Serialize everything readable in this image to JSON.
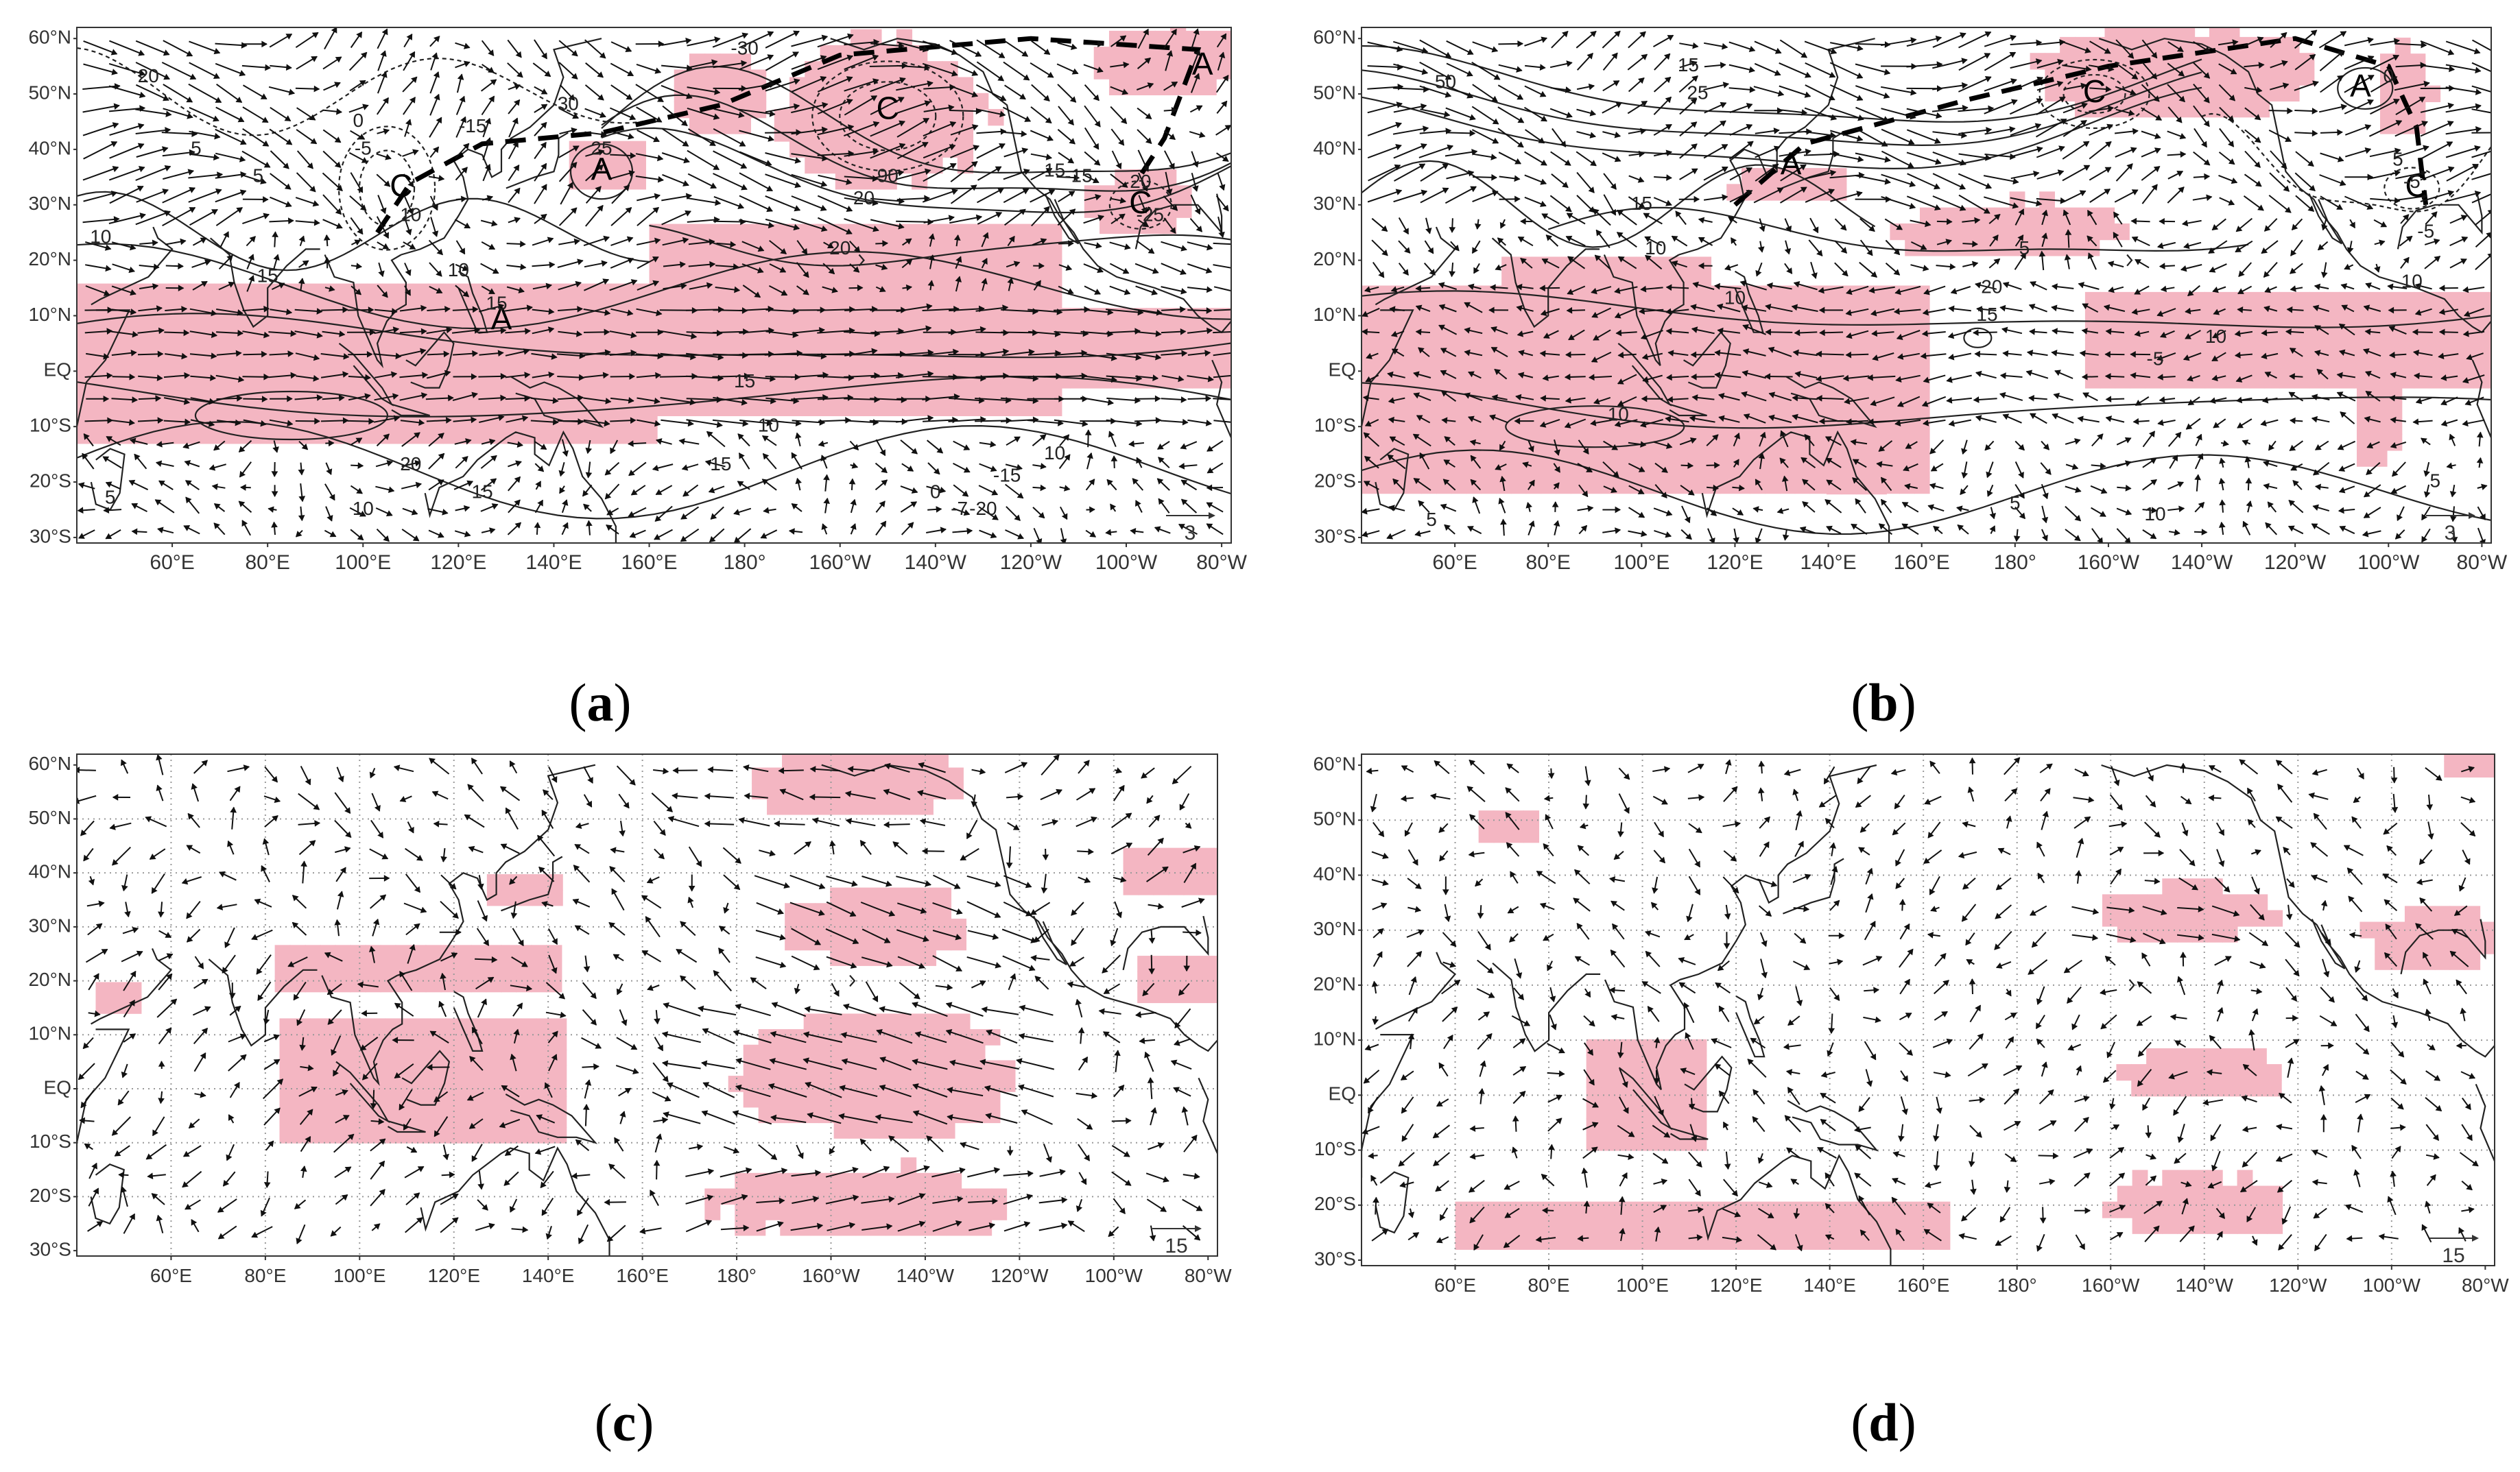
{
  "panels": [
    {
      "id": "a",
      "caption": "a",
      "lat_labels": [
        "60°N",
        "50°N",
        "40°N",
        "30°N",
        "20°N",
        "10°N",
        "EQ",
        "10°S",
        "20°S",
        "30°S"
      ],
      "lon_labels": [
        "60°E",
        "80°E",
        "100°E",
        "120°E",
        "140°E",
        "160°E",
        "180°",
        "160°W",
        "140°W",
        "120°W",
        "100°W",
        "80°W"
      ],
      "vector_scale": "3",
      "centers": [
        {
          "letter": "C",
          "lon": 108,
          "lat": 33
        },
        {
          "letter": "A",
          "lon": 150,
          "lat": 36
        },
        {
          "letter": "C",
          "lon": -150,
          "lat": 47
        },
        {
          "letter": "A",
          "lon": -84,
          "lat": 55
        },
        {
          "letter": "C",
          "lon": -97,
          "lat": 30
        },
        {
          "letter": "A",
          "lon": 129,
          "lat": 9
        }
      ],
      "contour_labels": [
        "20",
        "5",
        "5",
        "0",
        "-5",
        "10",
        "10",
        "10",
        "15",
        "15",
        "30",
        "25",
        "-30",
        "-15",
        "90",
        "20",
        "-15",
        "15",
        "20",
        "-25",
        "20",
        "15",
        "10",
        "20",
        "15",
        "10",
        "-15",
        "10",
        "15",
        "5",
        "0",
        "-7",
        "-20"
      ]
    },
    {
      "id": "b",
      "caption": "b",
      "lat_labels": [
        "60°N",
        "50°N",
        "40°N",
        "30°N",
        "20°N",
        "10°N",
        "EQ",
        "10°S",
        "20°S",
        "30°S"
      ],
      "lon_labels": [
        "60°E",
        "80°E",
        "100°E",
        "120°E",
        "140°E",
        "160°E",
        "180°",
        "160°W",
        "140°W",
        "120°W",
        "100°W",
        "80°W"
      ],
      "vector_scale": "3",
      "centers": [
        {
          "letter": "A",
          "lon": 132,
          "lat": 37
        },
        {
          "letter": "C",
          "lon": -163,
          "lat": 50
        },
        {
          "letter": "A",
          "lon": -106,
          "lat": 51
        },
        {
          "letter": "C",
          "lon": -94,
          "lat": 33
        }
      ],
      "contour_labels": [
        "50",
        "15",
        "25",
        "15",
        "10",
        "5",
        "20",
        "15",
        "10",
        "10",
        "10",
        "5",
        "10",
        "5",
        "0",
        "-5",
        "5",
        "-5",
        "10",
        "-5",
        "5"
      ]
    },
    {
      "id": "c",
      "caption": "c",
      "lat_labels": [
        "60°N",
        "50°N",
        "40°N",
        "30°N",
        "20°N",
        "10°N",
        "EQ",
        "10°S",
        "20°S",
        "30°S"
      ],
      "lon_labels": [
        "60°E",
        "80°E",
        "100°E",
        "120°E",
        "140°E",
        "160°E",
        "180°",
        "160°W",
        "140°W",
        "120°W",
        "100°W",
        "80°W"
      ],
      "vector_scale": "15"
    },
    {
      "id": "d",
      "caption": "d",
      "lat_labels": [
        "60°N",
        "50°N",
        "40°N",
        "30°N",
        "20°N",
        "10°N",
        "EQ",
        "10°S",
        "20°S",
        "30°S"
      ],
      "lon_labels": [
        "60°E",
        "80°E",
        "100°E",
        "120°E",
        "140°E",
        "160°E",
        "180°",
        "160°W",
        "140°W",
        "120°W",
        "100°W",
        "80°W"
      ],
      "vector_scale": "15"
    }
  ],
  "colors": {
    "shading": "#f4b6c2",
    "contour": "#222222",
    "vector": "#111111",
    "coast": "#222222",
    "frame": "#333333",
    "grid": "#999999"
  }
}
